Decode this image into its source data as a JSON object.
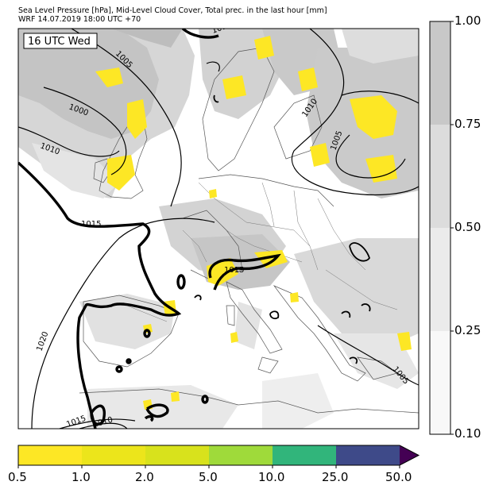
{
  "header": {
    "line1": "Sea Level Pressure [hPa], Mid-Level Cloud Cover, Total prec. in the last hour [mm]",
    "line2": "WRF 14.07.2019 18:00 UTC +70"
  },
  "map": {
    "time_box": "16 UTC Wed",
    "isobar_labels": [
      "1015",
      "1005",
      "1000",
      "1010",
      "1015",
      "1015",
      "1020",
      "1015",
      "1010",
      "1010",
      "1005",
      "1005"
    ]
  },
  "cloud_colorbar": {
    "tick_labels": [
      "1.00",
      "0.75",
      "0.50",
      "0.25",
      "0.10"
    ],
    "colors": [
      "#c8c8c8",
      "#dcdcdc",
      "#ebebeb",
      "#f8f8f8"
    ]
  },
  "precip_colorbar": {
    "tick_labels": [
      "0.5",
      "1.0",
      "2.0",
      "5.0",
      "10.0",
      "25.0",
      "50.0"
    ],
    "colors": [
      "#fde725",
      "#ece51b",
      "#d8e21c",
      "#9fda3a",
      "#31b57b",
      "#3e4a89",
      "#440154"
    ]
  }
}
